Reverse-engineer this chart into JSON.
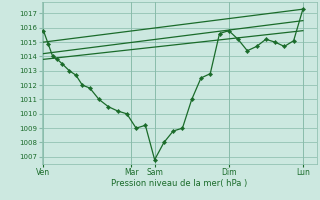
{
  "background_color": "#cce8e0",
  "grid_color": "#88bbaa",
  "line_color": "#1a6b2a",
  "marker_color": "#1a6b2a",
  "xlabel": "Pression niveau de la mer( hPa )",
  "ylim": [
    1006.5,
    1017.8
  ],
  "yticks": [
    1007,
    1008,
    1009,
    1010,
    1011,
    1012,
    1013,
    1014,
    1015,
    1016,
    1017
  ],
  "day_labels": [
    "Ven",
    "Mar",
    "Sam",
    "Dim",
    "Lun"
  ],
  "day_x": [
    0,
    9.5,
    12,
    20,
    28
  ],
  "xlim": [
    -0.2,
    29.5
  ],
  "line_detail": {
    "x": [
      0,
      0.5,
      1,
      1.5,
      2,
      2.8,
      3.5,
      4.2,
      5,
      6,
      7,
      8,
      9,
      10,
      11,
      12,
      13,
      14,
      15,
      16,
      17,
      18,
      19,
      20,
      21,
      22,
      23,
      24,
      25,
      26,
      27,
      28
    ],
    "y": [
      1015.8,
      1014.9,
      1014.0,
      1013.8,
      1013.5,
      1013.0,
      1012.7,
      1012.0,
      1011.8,
      1011.0,
      1010.5,
      1010.2,
      1010.0,
      1009.0,
      1009.2,
      1006.8,
      1008.0,
      1008.8,
      1009.0,
      1011.0,
      1012.5,
      1012.8,
      1015.6,
      1015.8,
      1015.2,
      1014.4,
      1014.7,
      1015.2,
      1015.0,
      1014.7,
      1015.1,
      1017.3
    ]
  },
  "line_upper": {
    "x": [
      0,
      28
    ],
    "y": [
      1015.0,
      1017.3
    ]
  },
  "line_mid1": {
    "x": [
      0,
      28
    ],
    "y": [
      1014.2,
      1016.5
    ]
  },
  "line_mid2": {
    "x": [
      0,
      28
    ],
    "y": [
      1013.8,
      1015.8
    ]
  }
}
